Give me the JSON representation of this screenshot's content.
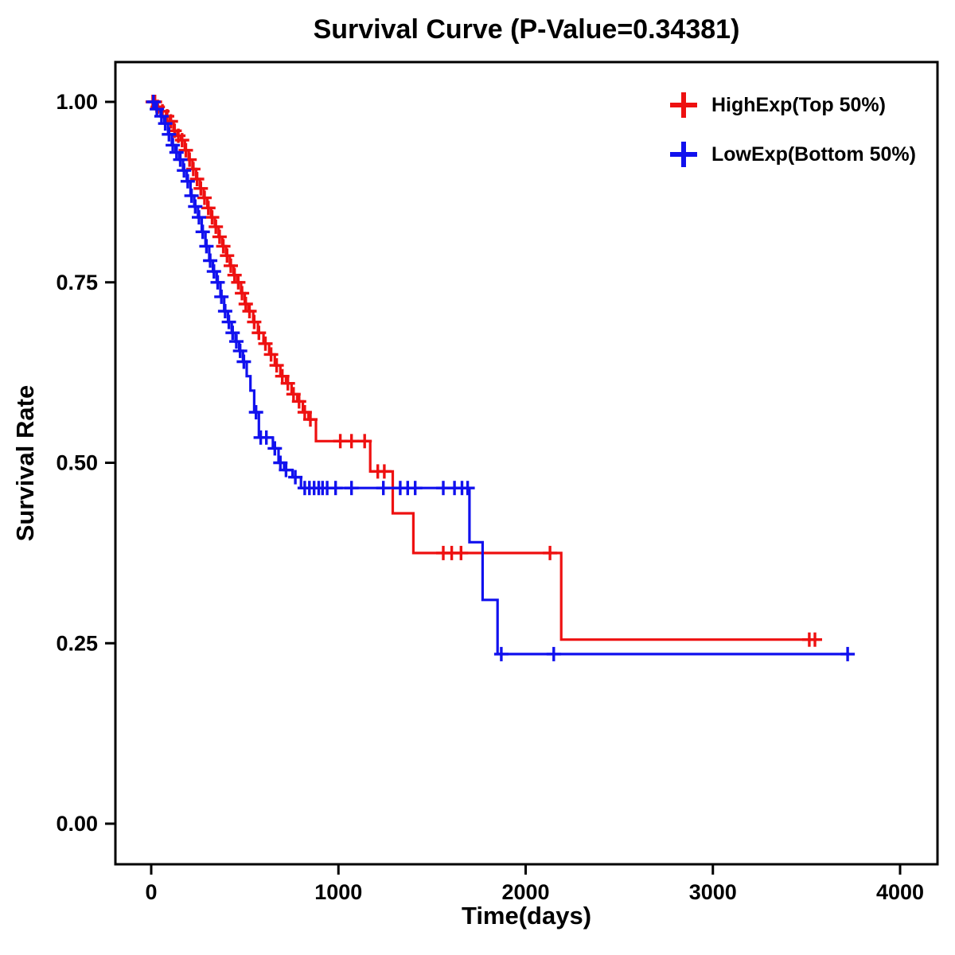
{
  "title": "Survival Curve (P-Value=0.34381)",
  "legend": {
    "items": [
      {
        "label": "HighExp(Top 50%)",
        "color": "#ee1111"
      },
      {
        "label": "LowExp(Bottom 50%)",
        "color": "#1111ee"
      }
    ]
  },
  "chart_data": {
    "type": "line",
    "subtype": "kaplan-meier-step-survival",
    "title": "Survival Curve (P-Value=0.34381)",
    "xlabel": "Time(days)",
    "ylabel": "Survival Rate",
    "xlim": [
      0,
      4000
    ],
    "ylim": [
      0.0,
      1.0
    ],
    "xticks": [
      0,
      1000,
      2000,
      3000,
      4000
    ],
    "yticks": [
      "0.00",
      "0.25",
      "0.50",
      "0.75",
      "1.00"
    ],
    "grid": false,
    "legend_position": "top-right-inside",
    "series": [
      {
        "name": "HighExp(Top 50%)",
        "color": "#ee1111",
        "end_time": 3550,
        "steps": [
          [
            0,
            1.0
          ],
          [
            30,
            0.993
          ],
          [
            55,
            0.987
          ],
          [
            80,
            0.98
          ],
          [
            100,
            0.973
          ],
          [
            120,
            0.96
          ],
          [
            140,
            0.953
          ],
          [
            160,
            0.947
          ],
          [
            180,
            0.933
          ],
          [
            200,
            0.92
          ],
          [
            220,
            0.907
          ],
          [
            240,
            0.893
          ],
          [
            260,
            0.88
          ],
          [
            280,
            0.867
          ],
          [
            300,
            0.853
          ],
          [
            320,
            0.84
          ],
          [
            340,
            0.827
          ],
          [
            360,
            0.813
          ],
          [
            380,
            0.8
          ],
          [
            400,
            0.787
          ],
          [
            420,
            0.773
          ],
          [
            440,
            0.76
          ],
          [
            460,
            0.75
          ],
          [
            480,
            0.735
          ],
          [
            500,
            0.72
          ],
          [
            520,
            0.71
          ],
          [
            545,
            0.695
          ],
          [
            570,
            0.68
          ],
          [
            600,
            0.665
          ],
          [
            630,
            0.65
          ],
          [
            660,
            0.635
          ],
          [
            690,
            0.62
          ],
          [
            720,
            0.61
          ],
          [
            750,
            0.595
          ],
          [
            780,
            0.585
          ],
          [
            810,
            0.57
          ],
          [
            840,
            0.56
          ],
          [
            880,
            0.53
          ],
          [
            1170,
            0.488
          ],
          [
            1290,
            0.43
          ],
          [
            1400,
            0.375
          ],
          [
            2190,
            0.255
          ]
        ],
        "censors": [
          [
            8,
            1.0
          ],
          [
            20,
            1.0
          ],
          [
            35,
            0.993
          ],
          [
            60,
            0.987
          ],
          [
            85,
            0.98
          ],
          [
            105,
            0.973
          ],
          [
            125,
            0.96
          ],
          [
            145,
            0.953
          ],
          [
            165,
            0.947
          ],
          [
            185,
            0.933
          ],
          [
            205,
            0.92
          ],
          [
            225,
            0.907
          ],
          [
            245,
            0.893
          ],
          [
            265,
            0.88
          ],
          [
            285,
            0.867
          ],
          [
            305,
            0.853
          ],
          [
            325,
            0.84
          ],
          [
            345,
            0.827
          ],
          [
            365,
            0.813
          ],
          [
            385,
            0.8
          ],
          [
            405,
            0.787
          ],
          [
            425,
            0.773
          ],
          [
            445,
            0.76
          ],
          [
            465,
            0.75
          ],
          [
            485,
            0.735
          ],
          [
            505,
            0.72
          ],
          [
            525,
            0.71
          ],
          [
            550,
            0.695
          ],
          [
            575,
            0.68
          ],
          [
            610,
            0.665
          ],
          [
            640,
            0.65
          ],
          [
            670,
            0.635
          ],
          [
            700,
            0.62
          ],
          [
            730,
            0.61
          ],
          [
            760,
            0.595
          ],
          [
            790,
            0.585
          ],
          [
            820,
            0.57
          ],
          [
            850,
            0.56
          ],
          [
            1010,
            0.53
          ],
          [
            1070,
            0.53
          ],
          [
            1140,
            0.53
          ],
          [
            1210,
            0.488
          ],
          [
            1245,
            0.488
          ],
          [
            1560,
            0.375
          ],
          [
            1605,
            0.375
          ],
          [
            1655,
            0.375
          ],
          [
            2130,
            0.375
          ],
          [
            3515,
            0.255
          ],
          [
            3545,
            0.255
          ]
        ]
      },
      {
        "name": "LowExp(Bottom 50%)",
        "color": "#1111ee",
        "end_time": 3730,
        "steps": [
          [
            0,
            1.0
          ],
          [
            25,
            0.99
          ],
          [
            50,
            0.98
          ],
          [
            70,
            0.97
          ],
          [
            90,
            0.955
          ],
          [
            110,
            0.94
          ],
          [
            130,
            0.93
          ],
          [
            150,
            0.92
          ],
          [
            170,
            0.905
          ],
          [
            190,
            0.89
          ],
          [
            210,
            0.87
          ],
          [
            230,
            0.855
          ],
          [
            250,
            0.84
          ],
          [
            270,
            0.82
          ],
          [
            290,
            0.8
          ],
          [
            310,
            0.78
          ],
          [
            330,
            0.765
          ],
          [
            350,
            0.75
          ],
          [
            370,
            0.73
          ],
          [
            390,
            0.71
          ],
          [
            410,
            0.695
          ],
          [
            430,
            0.68
          ],
          [
            450,
            0.668
          ],
          [
            470,
            0.655
          ],
          [
            490,
            0.64
          ],
          [
            510,
            0.62
          ],
          [
            530,
            0.6
          ],
          [
            550,
            0.57
          ],
          [
            575,
            0.535
          ],
          [
            650,
            0.52
          ],
          [
            680,
            0.5
          ],
          [
            710,
            0.49
          ],
          [
            755,
            0.48
          ],
          [
            800,
            0.465
          ],
          [
            1700,
            0.39
          ],
          [
            1770,
            0.31
          ],
          [
            1850,
            0.235
          ]
        ],
        "censors": [
          [
            12,
            1.0
          ],
          [
            30,
            0.99
          ],
          [
            55,
            0.98
          ],
          [
            75,
            0.97
          ],
          [
            95,
            0.955
          ],
          [
            115,
            0.94
          ],
          [
            135,
            0.93
          ],
          [
            155,
            0.92
          ],
          [
            175,
            0.905
          ],
          [
            195,
            0.89
          ],
          [
            215,
            0.87
          ],
          [
            235,
            0.855
          ],
          [
            255,
            0.84
          ],
          [
            275,
            0.82
          ],
          [
            295,
            0.8
          ],
          [
            315,
            0.78
          ],
          [
            335,
            0.765
          ],
          [
            355,
            0.75
          ],
          [
            375,
            0.73
          ],
          [
            395,
            0.71
          ],
          [
            415,
            0.695
          ],
          [
            435,
            0.68
          ],
          [
            455,
            0.668
          ],
          [
            475,
            0.655
          ],
          [
            495,
            0.64
          ],
          [
            560,
            0.57
          ],
          [
            585,
            0.535
          ],
          [
            615,
            0.535
          ],
          [
            660,
            0.52
          ],
          [
            690,
            0.5
          ],
          [
            720,
            0.49
          ],
          [
            770,
            0.48
          ],
          [
            820,
            0.465
          ],
          [
            845,
            0.465
          ],
          [
            870,
            0.465
          ],
          [
            895,
            0.465
          ],
          [
            915,
            0.465
          ],
          [
            940,
            0.465
          ],
          [
            985,
            0.465
          ],
          [
            1070,
            0.465
          ],
          [
            1240,
            0.465
          ],
          [
            1330,
            0.465
          ],
          [
            1370,
            0.465
          ],
          [
            1410,
            0.465
          ],
          [
            1560,
            0.465
          ],
          [
            1620,
            0.465
          ],
          [
            1660,
            0.465
          ],
          [
            1690,
            0.465
          ],
          [
            1870,
            0.235
          ],
          [
            2150,
            0.235
          ],
          [
            3720,
            0.235
          ]
        ]
      }
    ]
  }
}
